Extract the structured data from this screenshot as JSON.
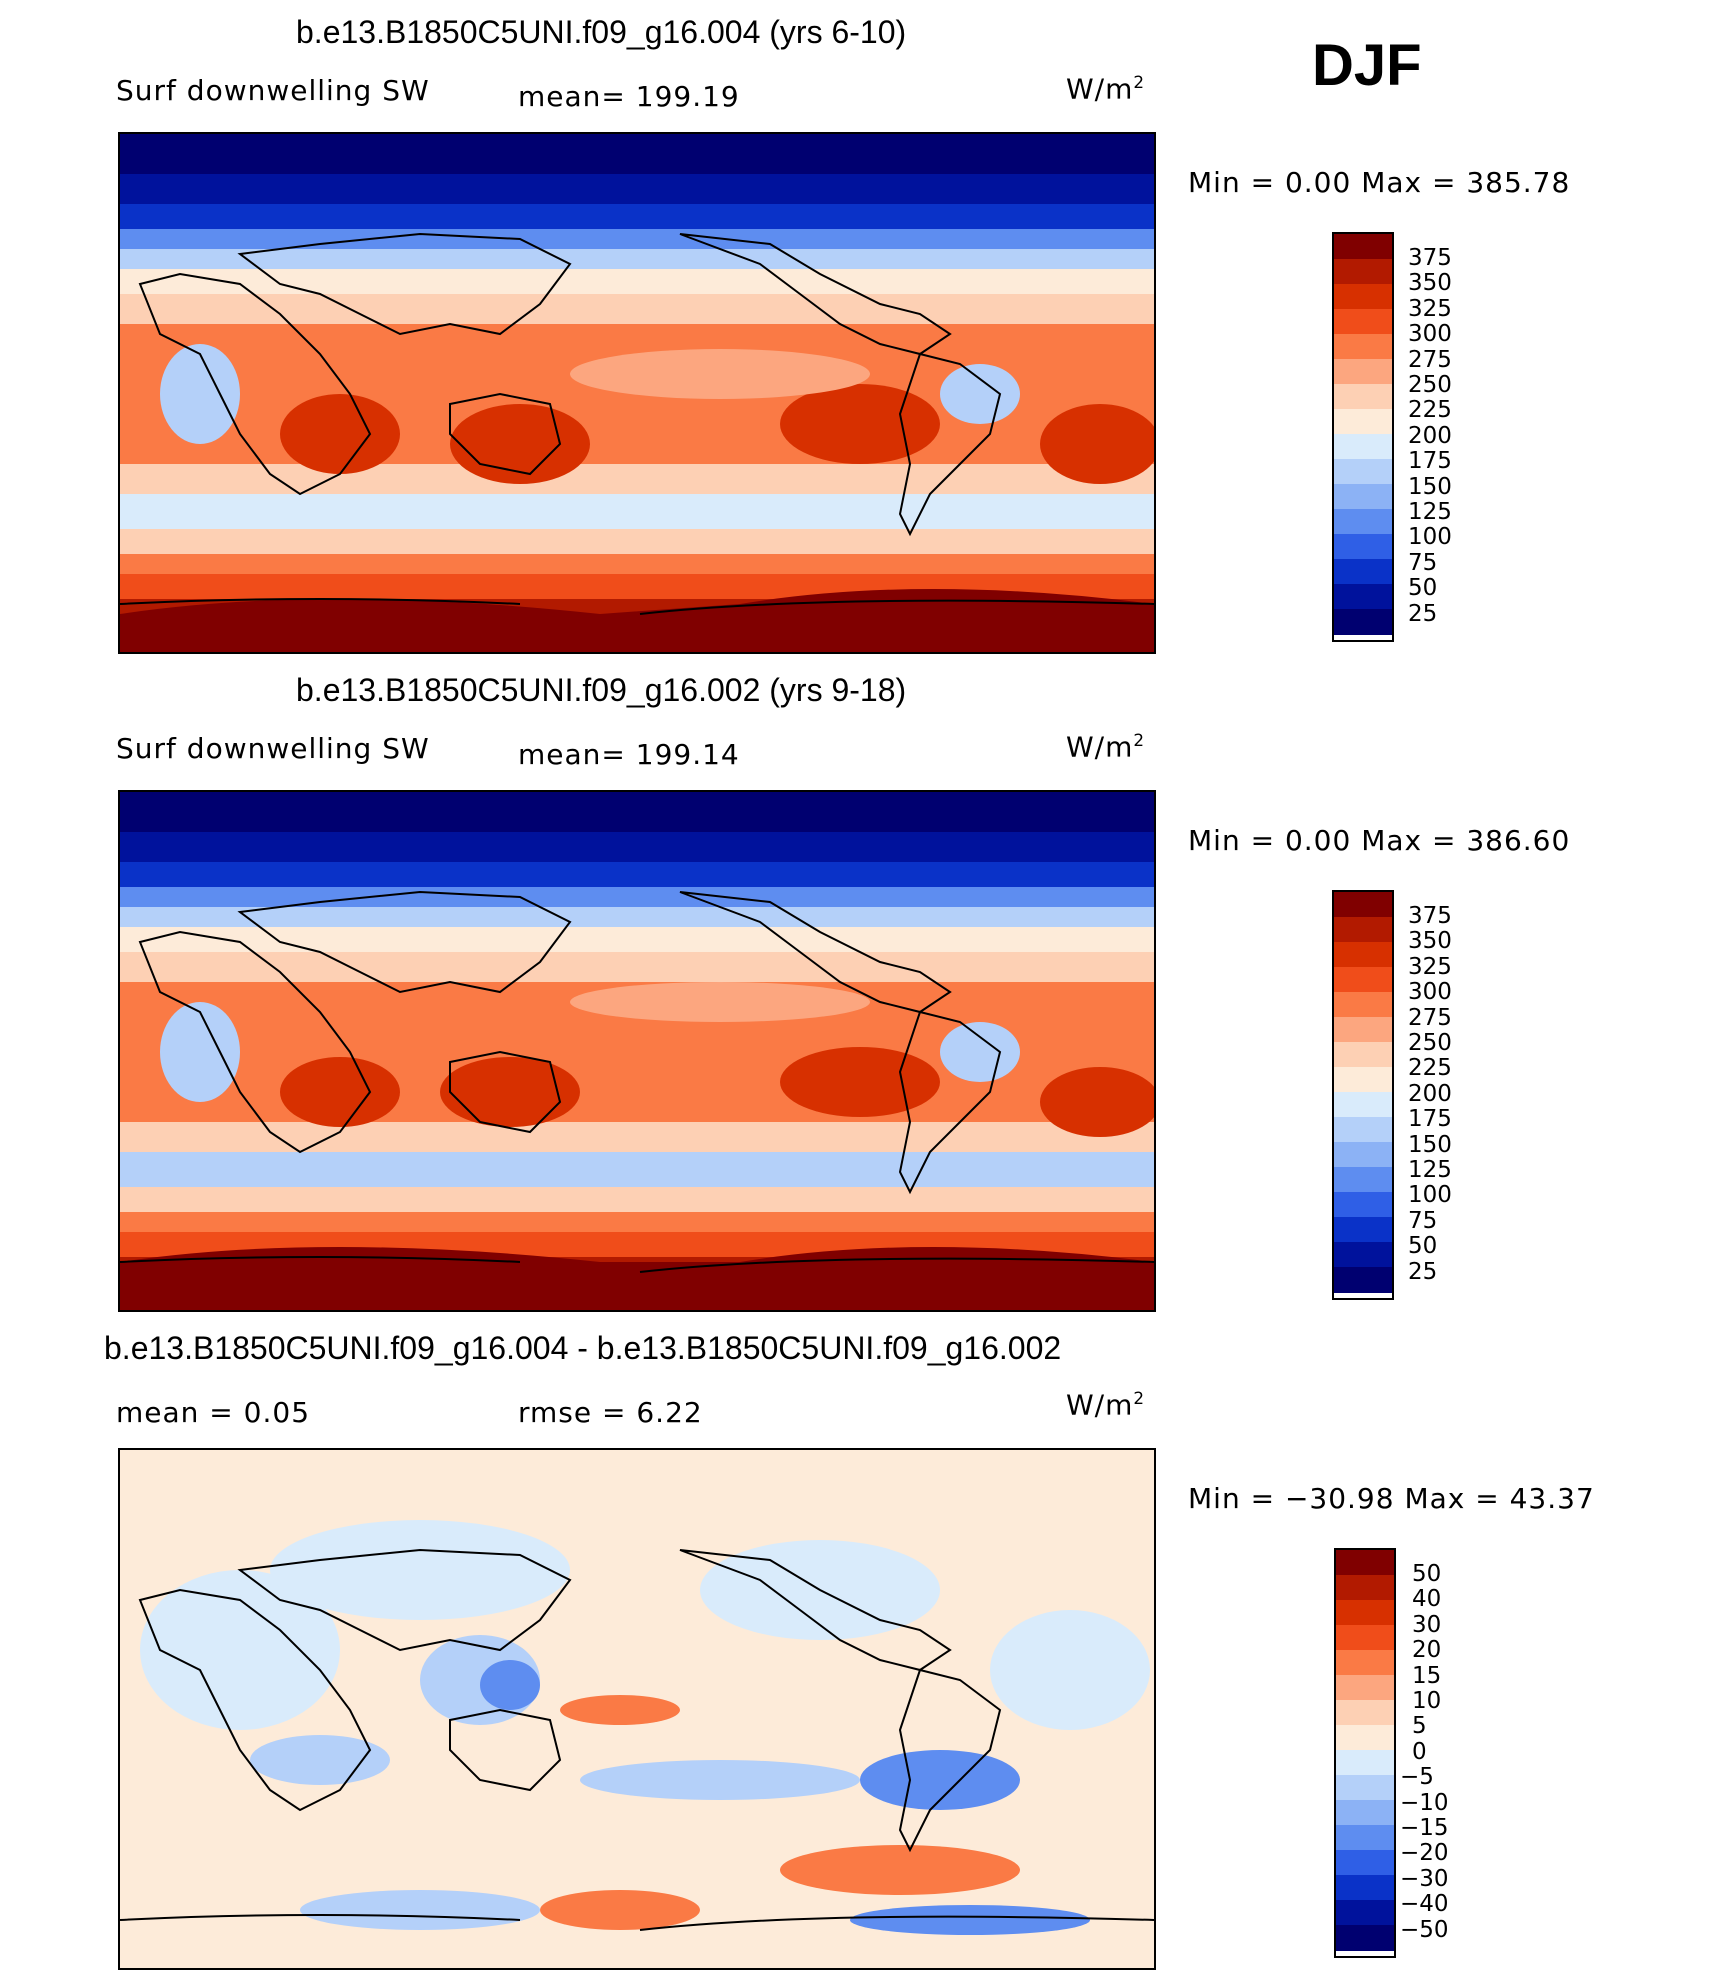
{
  "season": "DJF",
  "panels": [
    {
      "title": "b.e13.B1850C5UNI.f09_g16.004 (yrs 6-10)",
      "left_label": "Surf  downwelling  SW",
      "center_label": "mean=  199.19",
      "units_base": "W/m",
      "units_exp": "2",
      "minmax": "Min  =      0.00  Max  =  385.78",
      "colorbar_ticks": [
        "375",
        "350",
        "325",
        "300",
        "275",
        "250",
        "225",
        "200",
        "175",
        "150",
        "125",
        "100",
        "75",
        "50",
        "25"
      ]
    },
    {
      "title": "b.e13.B1850C5UNI.f09_g16.002 (yrs 9-18)",
      "left_label": "Surf  downwelling  SW",
      "center_label": "mean=  199.14",
      "units_base": "W/m",
      "units_exp": "2",
      "minmax": "Min  =      0.00  Max  =  386.60",
      "colorbar_ticks": [
        "375",
        "350",
        "325",
        "300",
        "275",
        "250",
        "225",
        "200",
        "175",
        "150",
        "125",
        "100",
        "75",
        "50",
        "25"
      ]
    },
    {
      "title": "b.e13.B1850C5UNI.f09_g16.004 - b.e13.B1850C5UNI.f09_g16.002",
      "left_label": "mean  =      0.05",
      "center_label": "rmse  =      6.22",
      "units_base": "W/m",
      "units_exp": "2",
      "minmax": "Min  = −30.98  Max  =    43.37",
      "colorbar_ticks": [
        "50",
        "40",
        "30",
        "20",
        "15",
        "10",
        "5",
        "0",
        "−5",
        "−10",
        "−15",
        "−20",
        "−30",
        "−40",
        "−50"
      ]
    }
  ],
  "colors": {
    "scale": [
      "#800000",
      "#b21a00",
      "#d73000",
      "#f04d1a",
      "#fa7a45",
      "#fca67f",
      "#fdd0b4",
      "#fdebd9",
      "#d9ebfb",
      "#b4d0f9",
      "#8cb2f5",
      "#5e8df0",
      "#2f5fe6",
      "#0a32c8",
      "#00129c",
      "#000070"
    ],
    "diff_scale": [
      "#800000",
      "#b21a00",
      "#d73000",
      "#f04d1a",
      "#fa7a45",
      "#fca67f",
      "#fdd0b4",
      "#fdebd9",
      "#d9ebfb",
      "#b4d0f9",
      "#8cb2f5",
      "#5e8df0",
      "#2f5fe6",
      "#0a32c8",
      "#00129c",
      "#000070"
    ]
  }
}
